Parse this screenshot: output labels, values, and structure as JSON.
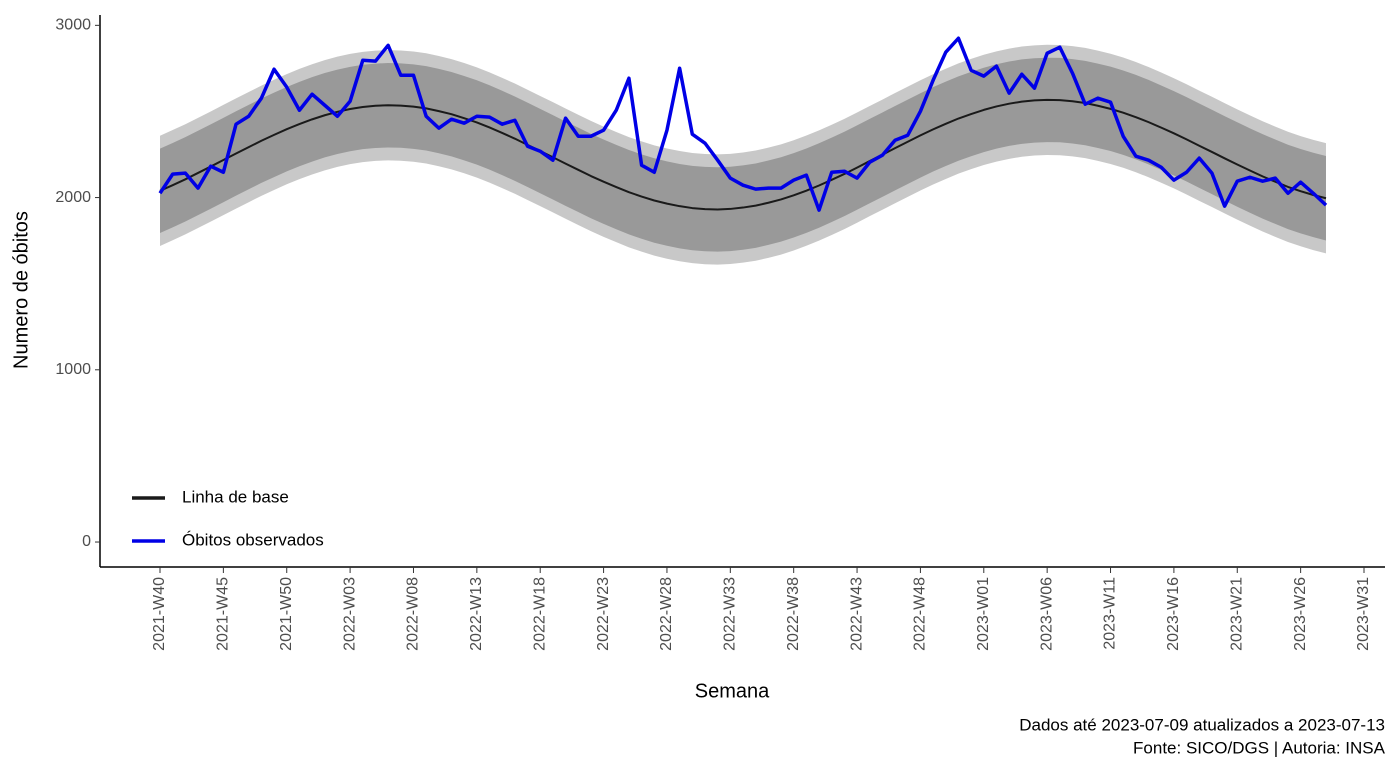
{
  "chart_data": {
    "type": "line",
    "y_label": "Numero de óbitos",
    "x_label": "Semana",
    "captions": [
      "Dados até 2023-07-09 atualizados a 2023-07-13",
      "Fonte: SICO/DGS | Autoria: INSA"
    ],
    "legend_position": "bottom-left",
    "categories": [
      "2021-W40",
      null,
      null,
      null,
      null,
      "2021-W45",
      null,
      null,
      null,
      null,
      "2021-W50",
      null,
      null,
      null,
      null,
      "2022-W03",
      null,
      null,
      null,
      null,
      "2022-W08",
      null,
      null,
      null,
      null,
      "2022-W13",
      null,
      null,
      null,
      null,
      "2022-W18",
      null,
      null,
      null,
      null,
      "2022-W23",
      null,
      null,
      null,
      null,
      "2022-W28",
      null,
      null,
      null,
      null,
      "2022-W33",
      null,
      null,
      null,
      null,
      "2022-W38",
      null,
      null,
      null,
      null,
      "2022-W43",
      null,
      null,
      null,
      null,
      "2022-W48",
      null,
      null,
      null,
      null,
      "2023-W01",
      null,
      null,
      null,
      null,
      "2023-W06",
      null,
      null,
      null,
      null,
      "2023-W11",
      null,
      null,
      null,
      null,
      "2023-W16",
      null,
      null,
      null,
      null,
      "2023-W21",
      null,
      null,
      null,
      null,
      "2023-W26",
      null,
      null,
      null,
      null,
      "2023-W31"
    ],
    "ylim": [
      -145,
      3060
    ],
    "yticks": [
      0,
      1000,
      2000,
      3000
    ],
    "bands": [
      {
        "color": "#c8c8c8",
        "lower": [
          1719,
          1752,
          1786,
          1823,
          1860,
          1898,
          1936,
          1973,
          2010,
          2044,
          2077,
          2107,
          2134,
          2158,
          2178,
          2194,
          2206,
          2213,
          2216,
          2214,
          2208,
          2198,
          2182,
          2164,
          2141,
          2116,
          2087,
          2055,
          2022,
          1986,
          1950,
          1914,
          1877,
          1841,
          1805,
          1772,
          1741,
          1711,
          1686,
          1663,
          1645,
          1630,
          1619,
          1613,
          1611,
          1614,
          1622,
          1633,
          1650,
          1669,
          1693,
          1720,
          1750,
          1783,
          1817,
          1854,
          1892,
          1929,
          1967,
          2004,
          2041,
          2076,
          2108,
          2139,
          2165,
          2189,
          2209,
          2225,
          2237,
          2244,
          2247,
          2246,
          2239,
          2229,
          2213,
          2195,
          2173,
          2147,
          2118,
          2086,
          2053,
          2018,
          1981,
          1945,
          1908,
          1872,
          1837,
          1803,
          1772,
          1742,
          1717,
          1695,
          1676,
          null,
          null,
          null
        ],
        "upper": [
          2359,
          2392,
          2426,
          2463,
          2500,
          2538,
          2576,
          2613,
          2650,
          2684,
          2717,
          2747,
          2774,
          2798,
          2818,
          2834,
          2846,
          2853,
          2856,
          2854,
          2848,
          2838,
          2822,
          2804,
          2781,
          2756,
          2727,
          2695,
          2662,
          2626,
          2590,
          2554,
          2517,
          2481,
          2445,
          2412,
          2381,
          2351,
          2326,
          2303,
          2285,
          2270,
          2259,
          2253,
          2251,
          2254,
          2262,
          2273,
          2290,
          2309,
          2333,
          2360,
          2390,
          2423,
          2457,
          2494,
          2532,
          2569,
          2607,
          2644,
          2681,
          2716,
          2748,
          2779,
          2805,
          2829,
          2849,
          2865,
          2877,
          2884,
          2887,
          2886,
          2879,
          2869,
          2853,
          2835,
          2813,
          2787,
          2758,
          2726,
          2693,
          2658,
          2621,
          2585,
          2548,
          2512,
          2477,
          2443,
          2412,
          2382,
          2357,
          2335,
          2316,
          null,
          null,
          null
        ]
      },
      {
        "color": "#999999",
        "lower": [
          1794,
          1827,
          1861,
          1898,
          1935,
          1973,
          2011,
          2048,
          2085,
          2119,
          2152,
          2182,
          2209,
          2233,
          2253,
          2269,
          2281,
          2288,
          2291,
          2289,
          2283,
          2273,
          2257,
          2239,
          2216,
          2191,
          2162,
          2130,
          2097,
          2061,
          2025,
          1989,
          1952,
          1916,
          1880,
          1847,
          1816,
          1786,
          1761,
          1738,
          1720,
          1705,
          1694,
          1688,
          1686,
          1689,
          1697,
          1708,
          1725,
          1744,
          1768,
          1795,
          1825,
          1858,
          1892,
          1929,
          1967,
          2004,
          2042,
          2079,
          2116,
          2151,
          2183,
          2214,
          2240,
          2264,
          2284,
          2300,
          2312,
          2319,
          2322,
          2321,
          2314,
          2304,
          2288,
          2270,
          2248,
          2222,
          2193,
          2161,
          2128,
          2093,
          2056,
          2020,
          1983,
          1947,
          1912,
          1878,
          1847,
          1817,
          1792,
          1770,
          1751,
          null,
          null,
          null
        ],
        "upper": [
          2284,
          2317,
          2351,
          2388,
          2425,
          2463,
          2501,
          2538,
          2575,
          2609,
          2642,
          2672,
          2699,
          2723,
          2743,
          2759,
          2771,
          2778,
          2781,
          2779,
          2773,
          2763,
          2747,
          2729,
          2706,
          2681,
          2652,
          2620,
          2587,
          2551,
          2515,
          2479,
          2442,
          2406,
          2370,
          2337,
          2306,
          2276,
          2251,
          2228,
          2210,
          2195,
          2184,
          2178,
          2176,
          2179,
          2187,
          2198,
          2215,
          2234,
          2258,
          2285,
          2315,
          2348,
          2382,
          2419,
          2457,
          2494,
          2532,
          2569,
          2606,
          2641,
          2673,
          2704,
          2730,
          2754,
          2774,
          2790,
          2802,
          2809,
          2812,
          2811,
          2804,
          2794,
          2778,
          2760,
          2738,
          2712,
          2683,
          2651,
          2618,
          2583,
          2546,
          2510,
          2473,
          2437,
          2402,
          2368,
          2337,
          2307,
          2282,
          2260,
          2241,
          null,
          null,
          null
        ]
      }
    ],
    "series": [
      {
        "name": "Linha de base",
        "color": "#1a1a1a",
        "width": 2,
        "values": [
          2039,
          2072,
          2106,
          2143,
          2180,
          2218,
          2256,
          2293,
          2330,
          2364,
          2397,
          2427,
          2454,
          2478,
          2498,
          2514,
          2526,
          2533,
          2536,
          2534,
          2528,
          2518,
          2502,
          2484,
          2461,
          2436,
          2407,
          2375,
          2342,
          2306,
          2270,
          2234,
          2197,
          2161,
          2125,
          2092,
          2061,
          2031,
          2006,
          1983,
          1965,
          1950,
          1939,
          1933,
          1931,
          1934,
          1942,
          1953,
          1970,
          1989,
          2013,
          2040,
          2070,
          2103,
          2137,
          2174,
          2212,
          2249,
          2287,
          2324,
          2361,
          2396,
          2428,
          2459,
          2485,
          2509,
          2529,
          2545,
          2557,
          2564,
          2567,
          2566,
          2559,
          2549,
          2533,
          2515,
          2493,
          2467,
          2438,
          2406,
          2373,
          2338,
          2301,
          2265,
          2228,
          2192,
          2157,
          2123,
          2092,
          2062,
          2037,
          2015,
          1996,
          null,
          null,
          null
        ]
      },
      {
        "name": "Óbitos observados",
        "color": "#0000e6",
        "width": 3.5,
        "values": [
          2025,
          2136,
          2142,
          2055,
          2182,
          2147,
          2426,
          2472,
          2577,
          2745,
          2641,
          2507,
          2600,
          2536,
          2472,
          2559,
          2797,
          2792,
          2884,
          2710,
          2710,
          2472,
          2403,
          2455,
          2432,
          2472,
          2467,
          2426,
          2449,
          2298,
          2269,
          2217,
          2461,
          2356,
          2356,
          2391,
          2507,
          2693,
          2188,
          2147,
          2391,
          2751,
          2368,
          2316,
          2217,
          2113,
          2072,
          2049,
          2055,
          2055,
          2101,
          2130,
          1927,
          2147,
          2153,
          2113,
          2205,
          2246,
          2333,
          2362,
          2501,
          2681,
          2844,
          2925,
          2739,
          2705,
          2763,
          2606,
          2716,
          2635,
          2838,
          2873,
          2722,
          2542,
          2577,
          2554,
          2356,
          2240,
          2217,
          2176,
          2101,
          2147,
          2229,
          2142,
          1950,
          2095,
          2118,
          2095,
          2113,
          2025,
          2089,
          2025,
          1956,
          null,
          null,
          null
        ]
      }
    ]
  }
}
